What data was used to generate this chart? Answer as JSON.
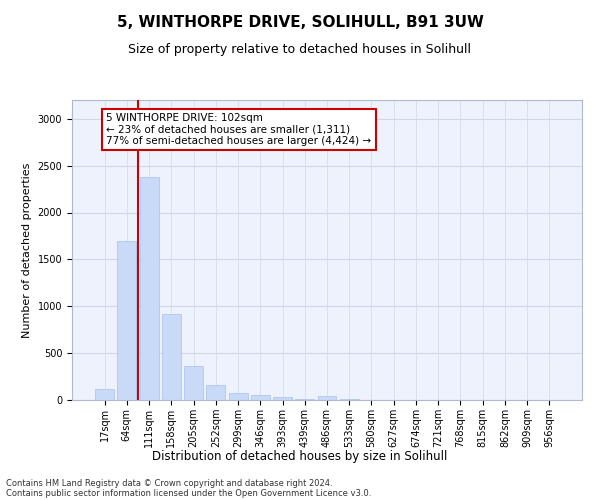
{
  "title1": "5, WINTHORPE DRIVE, SOLIHULL, B91 3UW",
  "title2": "Size of property relative to detached houses in Solihull",
  "xlabel": "Distribution of detached houses by size in Solihull",
  "ylabel": "Number of detached properties",
  "categories": [
    "17sqm",
    "64sqm",
    "111sqm",
    "158sqm",
    "205sqm",
    "252sqm",
    "299sqm",
    "346sqm",
    "393sqm",
    "439sqm",
    "486sqm",
    "533sqm",
    "580sqm",
    "627sqm",
    "674sqm",
    "721sqm",
    "768sqm",
    "815sqm",
    "862sqm",
    "909sqm",
    "956sqm"
  ],
  "values": [
    120,
    1700,
    2380,
    920,
    360,
    155,
    80,
    55,
    35,
    10,
    40,
    10,
    5,
    5,
    5,
    0,
    0,
    0,
    0,
    0,
    0
  ],
  "bar_color": "#c9daf8",
  "bar_edge_color": "#a4c2f4",
  "vline_color": "#cc0000",
  "annotation_text": "5 WINTHORPE DRIVE: 102sqm\n← 23% of detached houses are smaller (1,311)\n77% of semi-detached houses are larger (4,424) →",
  "annotation_box_facecolor": "white",
  "annotation_box_edgecolor": "#cc0000",
  "ylim": [
    0,
    3200
  ],
  "yticks": [
    0,
    500,
    1000,
    1500,
    2000,
    2500,
    3000
  ],
  "grid_color": "#d0d8e8",
  "bg_color": "#eef2fc",
  "footer1": "Contains HM Land Registry data © Crown copyright and database right 2024.",
  "footer2": "Contains public sector information licensed under the Open Government Licence v3.0.",
  "title1_fontsize": 11,
  "title2_fontsize": 9,
  "xlabel_fontsize": 8.5,
  "ylabel_fontsize": 8,
  "tick_fontsize": 7,
  "annotation_fontsize": 7.5,
  "footer_fontsize": 6
}
